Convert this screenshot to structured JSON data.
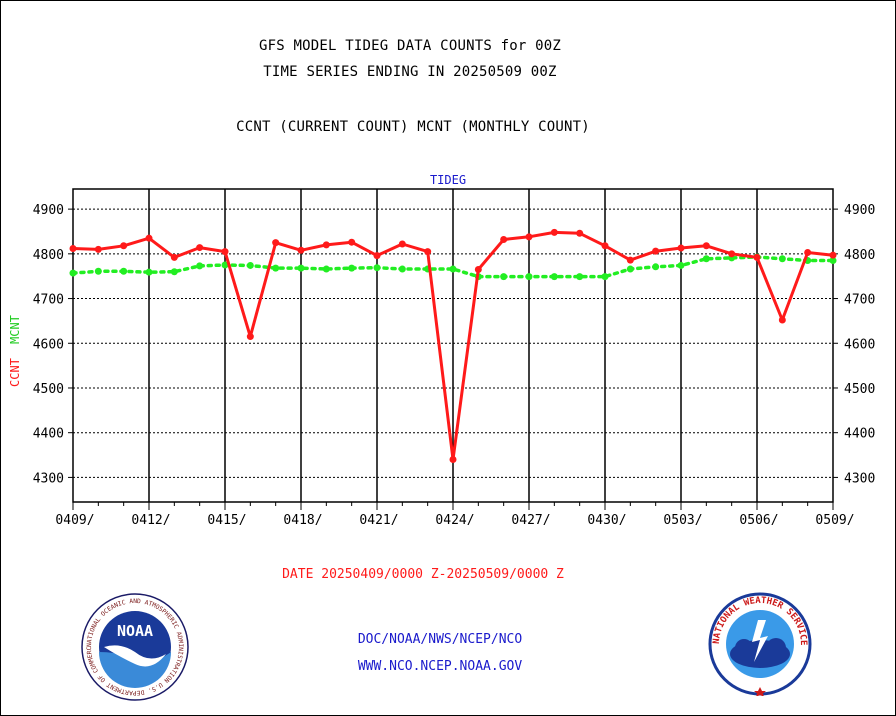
{
  "header": {
    "line1": "GFS MODEL TIDEG DATA COUNTS for 00Z",
    "line2": "TIME SERIES ENDING IN 20250509 00Z",
    "line3": "CCNT (CURRENT COUNT) MCNT (MONTHLY COUNT)"
  },
  "chart_data": {
    "type": "line",
    "title": "TIDEG",
    "ylabel_parts": [
      "CCNT",
      "MCNT"
    ],
    "x_tick_labels": [
      "0409/",
      "0412/",
      "0415/",
      "0418/",
      "0421/",
      "0424/",
      "0427/",
      "0430/",
      "0503/",
      "0506/",
      "0509/"
    ],
    "x_ticks_day_index": [
      0,
      3,
      6,
      9,
      12,
      15,
      18,
      21,
      24,
      27,
      30
    ],
    "xlim": [
      0,
      30
    ],
    "ylim": [
      4245,
      4945
    ],
    "y_ticks": [
      4300,
      4400,
      4500,
      4600,
      4700,
      4800,
      4900
    ],
    "xlabel": "DATE 20250409/0000 Z-20250509/0000 Z",
    "colors": {
      "ccnt": "#ff1a1a",
      "mcnt": "#22ee22",
      "title": "#1a1acc"
    },
    "series": [
      {
        "name": "CCNT",
        "values": [
          4812,
          4810,
          4818,
          4835,
          4792,
          4814,
          4805,
          4615,
          4825,
          4808,
          4820,
          4826,
          4796,
          4822,
          4805,
          4340,
          4765,
          4832,
          4838,
          4848,
          4846,
          4818,
          4786,
          4806,
          4813,
          4818,
          4800,
          4792,
          4652,
          4803,
          4797
        ]
      },
      {
        "name": "MCNT",
        "values": [
          4757,
          4761,
          4761,
          4759,
          4760,
          4773,
          4775,
          4774,
          4768,
          4768,
          4766,
          4768,
          4769,
          4766,
          4766,
          4766,
          4749,
          4749,
          4749,
          4749,
          4749,
          4749,
          4766,
          4771,
          4774,
          4789,
          4791,
          4793,
          4789,
          4785,
          4785
        ]
      }
    ]
  },
  "footer": {
    "line1": "DOC/NOAA/NWS/NCEP/NCO",
    "line2": "WWW.NCO.NCEP.NOAA.GOV"
  },
  "logos": {
    "noaa": {
      "text": "NOAA",
      "ring_text": "NATIONAL OCEANIC AND ATMOSPHERIC ADMINISTRATION  U.S. DEPARTMENT OF COMMERCE"
    },
    "nws": {
      "ring_text": "NATIONAL WEATHER SERVICE"
    }
  }
}
